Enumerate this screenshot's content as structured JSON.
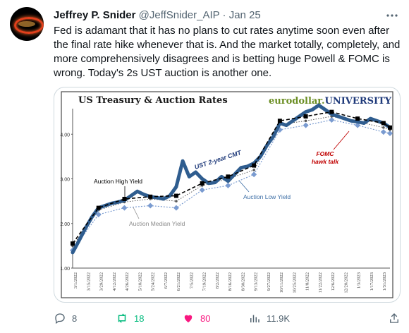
{
  "tweet": {
    "author_name": "Jeffrey P. Snider",
    "handle": "@JeffSnider_AIP",
    "separator": "·",
    "date": "Jan 25",
    "text": "Fed is adamant that it has no plans to cut rates anytime soon even after the final rate hike whenever that is. And the market totally, completely, and more comprehensively disagrees and is betting huge Powell & FOMC is wrong. Today's 2s UST auction is another one.",
    "more_icon": "more-horizontal-icon"
  },
  "actions": {
    "replies": "8",
    "retweets": "18",
    "likes": "80",
    "views": "11.9K",
    "icons": {
      "reply": "reply-icon",
      "retweet": "retweet-icon",
      "like": "heart-icon",
      "views": "views-chart-icon",
      "share": "share-icon"
    }
  },
  "chart_data": {
    "type": "line",
    "title": "US Treasury & Auction Rates",
    "brand": {
      "part1": "eurodollar.",
      "part2": "UNIVERSITY"
    },
    "ylim": [
      1.0,
      4.7
    ],
    "yticks": [
      "1.00",
      "2.00",
      "3.00",
      "4.00"
    ],
    "x_ticks": [
      "3/1/2022",
      "3/15/2022",
      "3/29/2022",
      "4/12/2022",
      "4/26/2022",
      "5/10/2022",
      "5/24/2022",
      "6/7/2022",
      "6/21/2022",
      "7/5/2022",
      "7/19/2022",
      "8/2/2022",
      "8/16/2022",
      "8/30/2022",
      "9/13/2022",
      "9/27/2022",
      "10/11/2022",
      "10/25/2022",
      "11/8/2022",
      "11/22/2022",
      "12/6/2022",
      "12/20/2022",
      "1/3/2023",
      "1/17/2023",
      "1/31/2023"
    ],
    "colors": {
      "cmt": "#2f5d8f",
      "high": "#000000",
      "low": "#7a9bd0",
      "median": "#555555",
      "annotation_red": "#c00000",
      "annotation_blue": "#3e6fa6"
    },
    "annotations": {
      "cmt": "UST 2-year CMT",
      "high": "Auction High Yield",
      "median": "Auction Median Yield",
      "low": "Auction Low Yield",
      "fomc_line1": "FOMC",
      "fomc_line2": "hawk talk"
    },
    "series": [
      {
        "name": "UST 2-year CMT",
        "x": [
          0,
          1,
          2,
          3,
          4,
          5,
          6,
          7,
          8,
          9,
          10,
          11,
          12,
          13,
          14,
          15,
          16,
          17,
          18,
          19,
          20,
          21,
          22,
          23,
          24,
          25,
          26,
          27,
          28,
          29,
          30,
          31,
          32,
          33,
          34,
          35,
          36,
          37,
          38,
          39,
          40,
          41,
          42,
          43,
          44,
          45,
          46,
          47,
          48,
          49
        ],
        "values": [
          1.35,
          1.62,
          1.9,
          2.15,
          2.35,
          2.4,
          2.45,
          2.48,
          2.52,
          2.62,
          2.72,
          2.65,
          2.6,
          2.58,
          2.55,
          2.62,
          2.82,
          3.4,
          3.05,
          3.15,
          3.0,
          2.9,
          2.92,
          3.05,
          2.95,
          3.1,
          3.25,
          3.28,
          3.35,
          3.5,
          3.75,
          3.95,
          4.25,
          4.2,
          4.3,
          4.4,
          4.5,
          4.55,
          4.65,
          4.55,
          4.45,
          4.4,
          4.35,
          4.3,
          4.28,
          4.25,
          4.35,
          4.3,
          4.25,
          4.15
        ]
      },
      {
        "name": "Auction High Yield",
        "x": [
          0,
          4,
          8,
          12,
          16,
          20,
          24,
          28,
          32,
          36,
          40,
          44,
          48,
          49
        ],
        "values": [
          1.55,
          2.35,
          2.55,
          2.6,
          2.62,
          2.9,
          3.05,
          3.3,
          4.3,
          4.4,
          4.5,
          4.35,
          4.25,
          4.15
        ]
      },
      {
        "name": "Auction Median Yield",
        "x": [
          0,
          4,
          8,
          12,
          16,
          20,
          24,
          28,
          32,
          36,
          40,
          44,
          48,
          49
        ],
        "values": [
          1.5,
          2.3,
          2.48,
          2.55,
          2.5,
          2.85,
          3.0,
          3.2,
          4.22,
          4.3,
          4.4,
          4.28,
          4.15,
          4.1
        ]
      },
      {
        "name": "Auction Low Yield",
        "x": [
          0,
          4,
          8,
          12,
          16,
          20,
          24,
          28,
          32,
          36,
          40,
          44,
          48,
          49
        ],
        "values": [
          1.4,
          2.2,
          2.35,
          2.4,
          2.35,
          2.75,
          2.85,
          3.1,
          4.1,
          4.2,
          4.32,
          4.2,
          4.05,
          4.02
        ]
      }
    ]
  }
}
